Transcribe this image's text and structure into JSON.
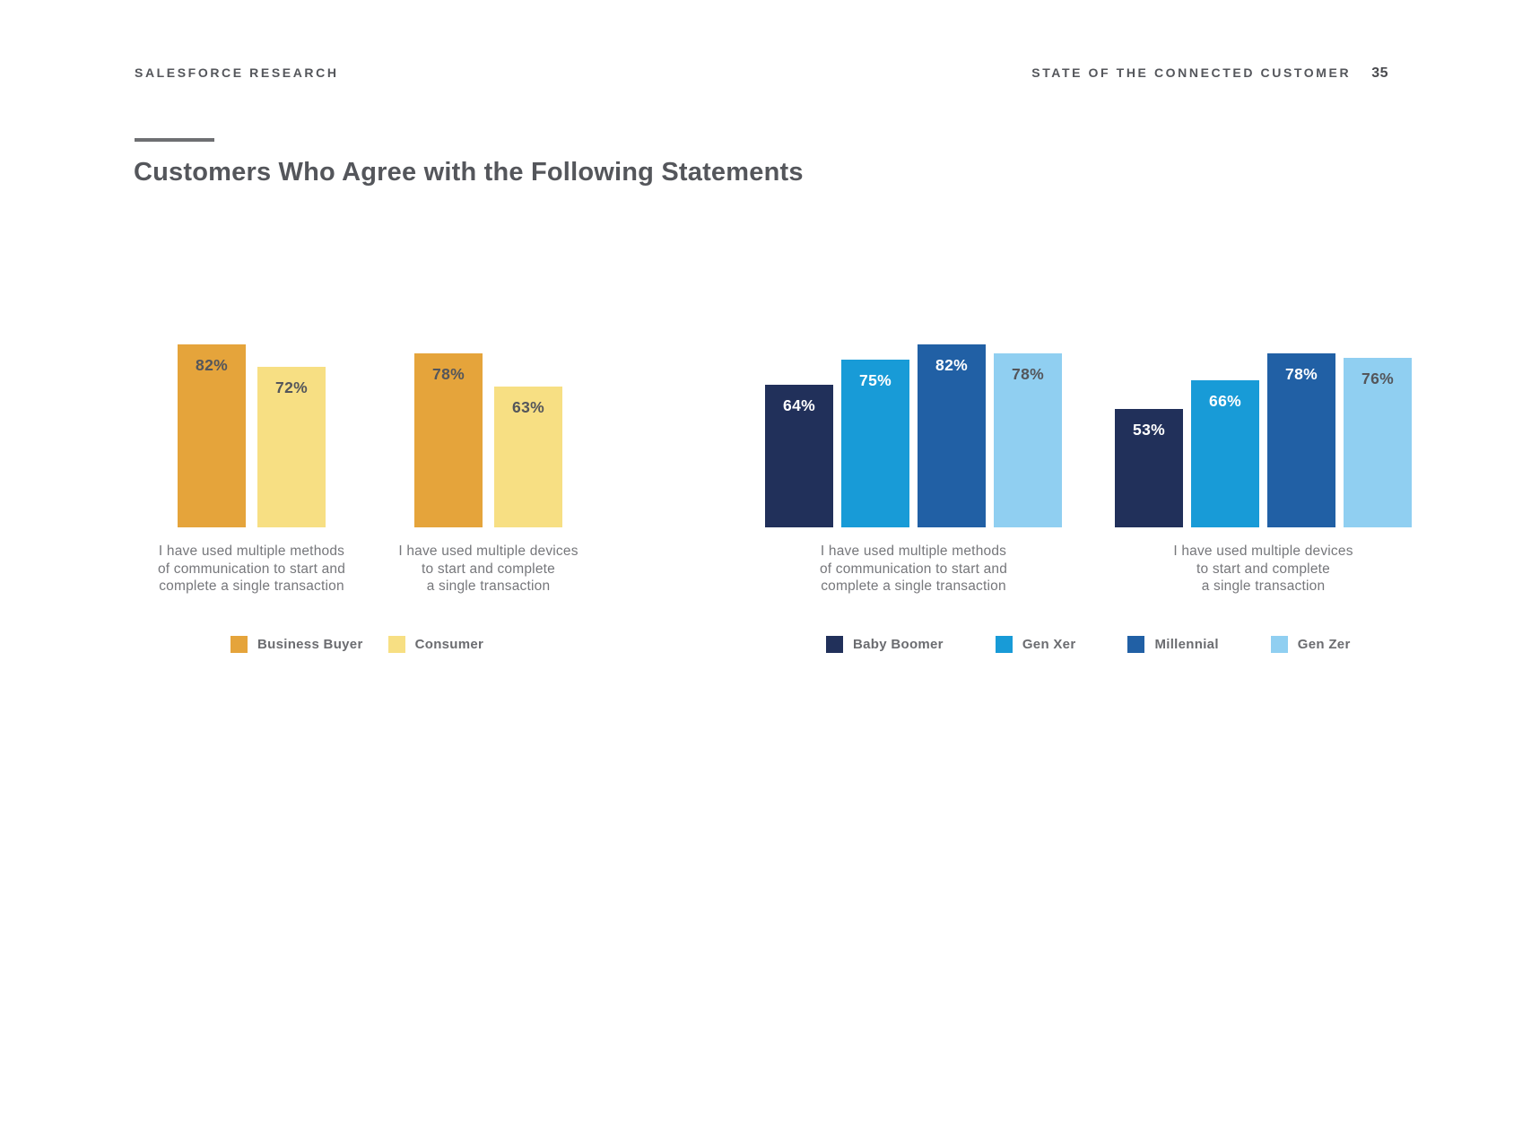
{
  "page": {
    "header_left": "SALESFORCE RESEARCH",
    "header_right": "STATE OF THE CONNECTED CUSTOMER",
    "page_number": "35",
    "title": "Customers Who Agree with the Following Statements",
    "background_color": "#FFFFFF",
    "heading_color": "#54565B",
    "caption_color": "#76777B",
    "legend_text_color": "#6B6C70"
  },
  "chart_data": [
    {
      "type": "bar",
      "title": "",
      "unit": "%",
      "ylim": [
        0,
        100
      ],
      "grid": false,
      "legend_position": "bottom",
      "categories": [
        "I have used multiple methods of communication to start and complete a single transaction",
        "I have used multiple devices to start and complete a single transaction"
      ],
      "category_lines": [
        [
          "I have used multiple methods",
          "of communication to start and",
          "complete a single transaction"
        ],
        [
          "I have used multiple devices",
          "to start and complete",
          "a single transaction"
        ]
      ],
      "series": [
        {
          "name": "Business Buyer",
          "color": "#E5A43B",
          "label_color": "#54565B",
          "values": [
            82,
            78
          ]
        },
        {
          "name": "Consumer",
          "color": "#F7DF83",
          "label_color": "#54565B",
          "values": [
            72,
            63
          ]
        }
      ]
    },
    {
      "type": "bar",
      "title": "",
      "unit": "%",
      "ylim": [
        0,
        100
      ],
      "grid": false,
      "legend_position": "bottom",
      "categories": [
        "I have used multiple methods of communication to start and complete a single transaction",
        "I have used multiple devices to start and complete a single transaction"
      ],
      "category_lines": [
        [
          "I have used multiple methods",
          "of communication to start and",
          "complete a single transaction"
        ],
        [
          "I have used multiple devices",
          "to start and complete",
          "a single transaction"
        ]
      ],
      "series": [
        {
          "name": "Baby Boomer",
          "color": "#21305A",
          "label_color": "#FFFFFF",
          "values": [
            64,
            53
          ]
        },
        {
          "name": "Gen Xer",
          "color": "#189BD7",
          "label_color": "#FFFFFF",
          "values": [
            75,
            66
          ]
        },
        {
          "name": "Millennial",
          "color": "#2160A5",
          "label_color": "#FFFFFF",
          "values": [
            82,
            78
          ]
        },
        {
          "name": "Gen Zer",
          "color": "#90CFF1",
          "label_color": "#54565B",
          "values": [
            78,
            76
          ]
        }
      ]
    }
  ]
}
